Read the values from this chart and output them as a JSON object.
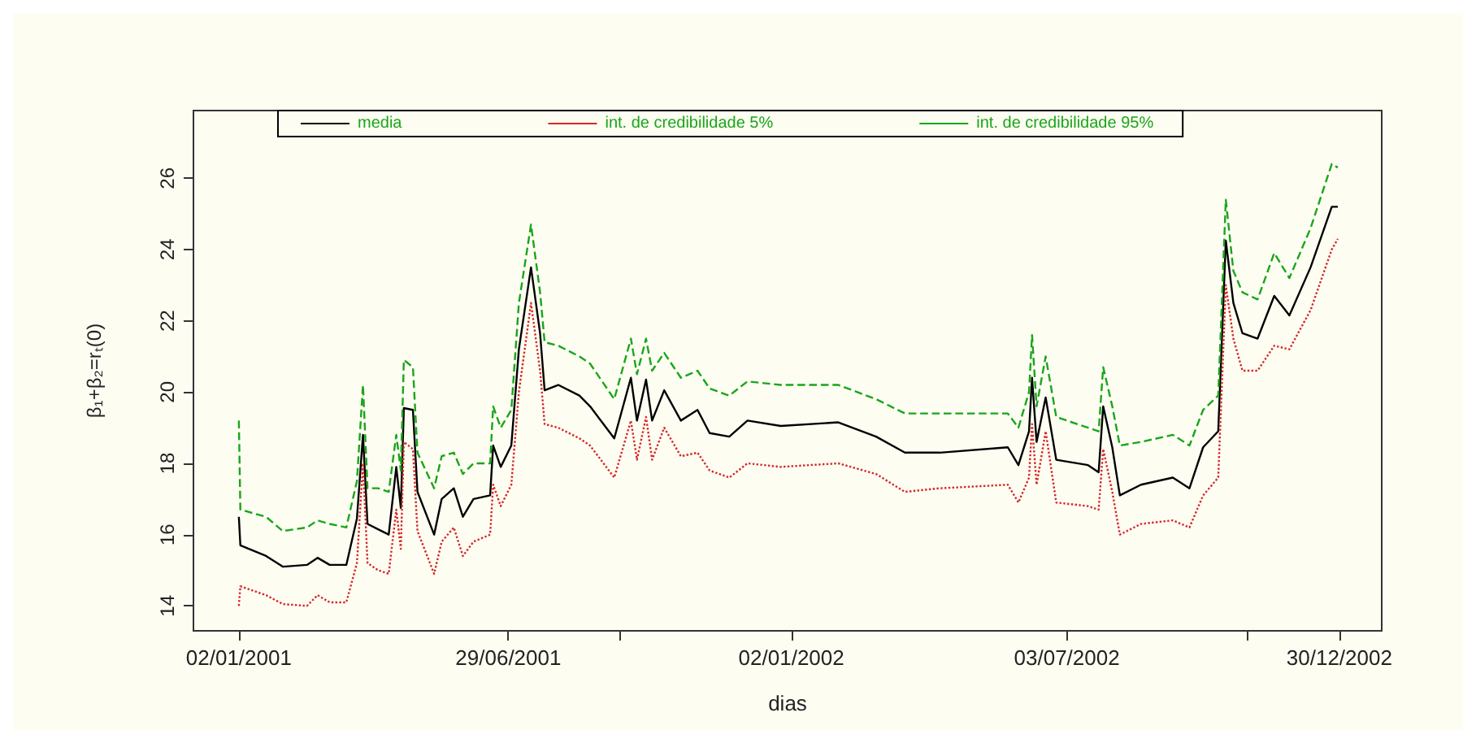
{
  "chart_data": {
    "type": "line",
    "xlabel": "dias",
    "ylabel": "β₁+β₂=rₜ(0)",
    "x": [
      "2001-01-02",
      "2001-01-03",
      "2001-01-20",
      "2001-01-31",
      "2001-02-16",
      "2001-02-23",
      "2001-03-03",
      "2001-03-14",
      "2001-03-21",
      "2001-03-25",
      "2001-03-28",
      "2001-04-04",
      "2001-04-11",
      "2001-04-16",
      "2001-04-19",
      "2001-04-21",
      "2001-04-27",
      "2001-04-30",
      "2001-05-11",
      "2001-05-16",
      "2001-05-24",
      "2001-05-30",
      "2001-06-06",
      "2001-06-17",
      "2001-06-19",
      "2001-06-24",
      "2001-07-01",
      "2001-07-06",
      "2001-07-14",
      "2001-07-20",
      "2001-07-23",
      "2001-08-01",
      "2001-08-15",
      "2001-08-22",
      "2001-09-07",
      "2001-09-18",
      "2001-09-22",
      "2001-09-28",
      "2001-10-02",
      "2001-10-10",
      "2001-10-21",
      "2001-11-01",
      "2001-11-09",
      "2001-11-22",
      "2001-12-04",
      "2001-12-26",
      "2002-02-02",
      "2002-02-27",
      "2002-03-18",
      "2002-04-10",
      "2002-05-25",
      "2002-06-01",
      "2002-06-08",
      "2002-06-10",
      "2002-06-13",
      "2002-06-19",
      "2002-06-26",
      "2002-07-17",
      "2002-07-24",
      "2002-07-27",
      "2002-08-02",
      "2002-08-07",
      "2002-08-21",
      "2002-09-11",
      "2002-09-22",
      "2002-10-01",
      "2002-10-11",
      "2002-10-16",
      "2002-10-21",
      "2002-10-27",
      "2002-11-06",
      "2002-11-17",
      "2002-11-27",
      "2002-12-11",
      "2002-12-25",
      "2002-12-29"
    ],
    "series": [
      {
        "name": "media",
        "color": "#000000",
        "line_style": "solid",
        "values": [
          16.5,
          15.7,
          15.4,
          15.1,
          15.15,
          15.35,
          15.15,
          15.15,
          16.45,
          18.8,
          16.3,
          16.15,
          16.0,
          17.9,
          16.75,
          19.55,
          19.5,
          17.2,
          16.0,
          17.0,
          17.3,
          16.5,
          17.0,
          17.1,
          18.5,
          17.9,
          18.5,
          21.2,
          23.5,
          21.65,
          20.05,
          20.2,
          19.9,
          19.6,
          18.7,
          20.4,
          19.2,
          20.35,
          19.2,
          20.05,
          19.2,
          19.5,
          18.85,
          18.75,
          19.2,
          19.05,
          19.15,
          18.75,
          18.3,
          18.3,
          18.45,
          17.95,
          18.9,
          20.4,
          18.6,
          19.85,
          18.1,
          17.95,
          17.75,
          19.6,
          18.45,
          17.1,
          17.4,
          17.6,
          17.3,
          18.45,
          18.9,
          24.25,
          22.5,
          21.65,
          21.5,
          22.7,
          22.15,
          23.5,
          25.2,
          25.2
        ]
      },
      {
        "name": "int. de credibilidade 5%",
        "color": "#d62728",
        "line_style": "dotted",
        "values": [
          14.0,
          14.55,
          14.3,
          14.05,
          14.0,
          14.3,
          14.1,
          14.1,
          15.2,
          18.0,
          15.2,
          15.0,
          14.9,
          16.7,
          15.6,
          18.6,
          18.4,
          16.1,
          14.9,
          15.8,
          16.2,
          15.4,
          15.8,
          16.0,
          17.4,
          16.8,
          17.4,
          20.0,
          22.5,
          20.6,
          19.1,
          19.0,
          18.7,
          18.5,
          17.6,
          19.2,
          18.1,
          19.3,
          18.1,
          19.0,
          18.2,
          18.3,
          17.8,
          17.6,
          18.0,
          17.9,
          18.0,
          17.7,
          17.2,
          17.3,
          17.4,
          16.9,
          17.6,
          19.1,
          17.4,
          18.9,
          16.9,
          16.8,
          16.7,
          18.4,
          17.2,
          16.0,
          16.3,
          16.4,
          16.2,
          17.1,
          17.6,
          23.0,
          21.5,
          20.6,
          20.6,
          21.3,
          21.2,
          22.3,
          24.0,
          24.3
        ]
      },
      {
        "name": "int. de credibilidade 95%",
        "color": "#1aa51a",
        "line_style": "dashed",
        "values": [
          19.2,
          16.7,
          16.5,
          16.1,
          16.2,
          16.4,
          16.3,
          16.2,
          17.5,
          20.2,
          17.3,
          17.3,
          17.2,
          18.8,
          17.8,
          20.9,
          20.7,
          18.3,
          17.3,
          18.2,
          18.3,
          17.7,
          18.0,
          18.0,
          19.6,
          19.0,
          19.5,
          22.5,
          24.7,
          22.8,
          21.4,
          21.3,
          21.0,
          20.8,
          19.8,
          21.5,
          20.5,
          21.5,
          20.6,
          21.1,
          20.4,
          20.6,
          20.1,
          19.9,
          20.3,
          20.2,
          20.2,
          19.8,
          19.4,
          19.4,
          19.4,
          19.0,
          20.0,
          21.6,
          19.6,
          21.0,
          19.3,
          19.0,
          18.9,
          20.7,
          19.6,
          18.5,
          18.6,
          18.8,
          18.5,
          19.5,
          19.9,
          25.4,
          23.4,
          22.8,
          22.6,
          23.9,
          23.2,
          24.6,
          26.4,
          26.3
        ]
      }
    ],
    "xlim": [
      "2000-12-03",
      "2003-01-27"
    ],
    "xticks": [
      {
        "value": "2001-01-02",
        "label": "02/01/2001"
      },
      {
        "value": "2001-06-29",
        "label": "29/06/2001"
      },
      {
        "value": "2001-09-11",
        "label": null
      },
      {
        "value": "2002-01-02",
        "label": "02/01/2002"
      },
      {
        "value": "2002-07-03",
        "label": "03/07/2002"
      },
      {
        "value": "2002-10-30",
        "label": null
      },
      {
        "value": "2002-12-30",
        "label": "30/12/2002"
      }
    ],
    "ylim": [
      13.3,
      27.9
    ],
    "yticks": [
      14,
      16,
      18,
      20,
      22,
      24,
      26
    ],
    "grid": false,
    "legend": "top",
    "marker": "none"
  }
}
